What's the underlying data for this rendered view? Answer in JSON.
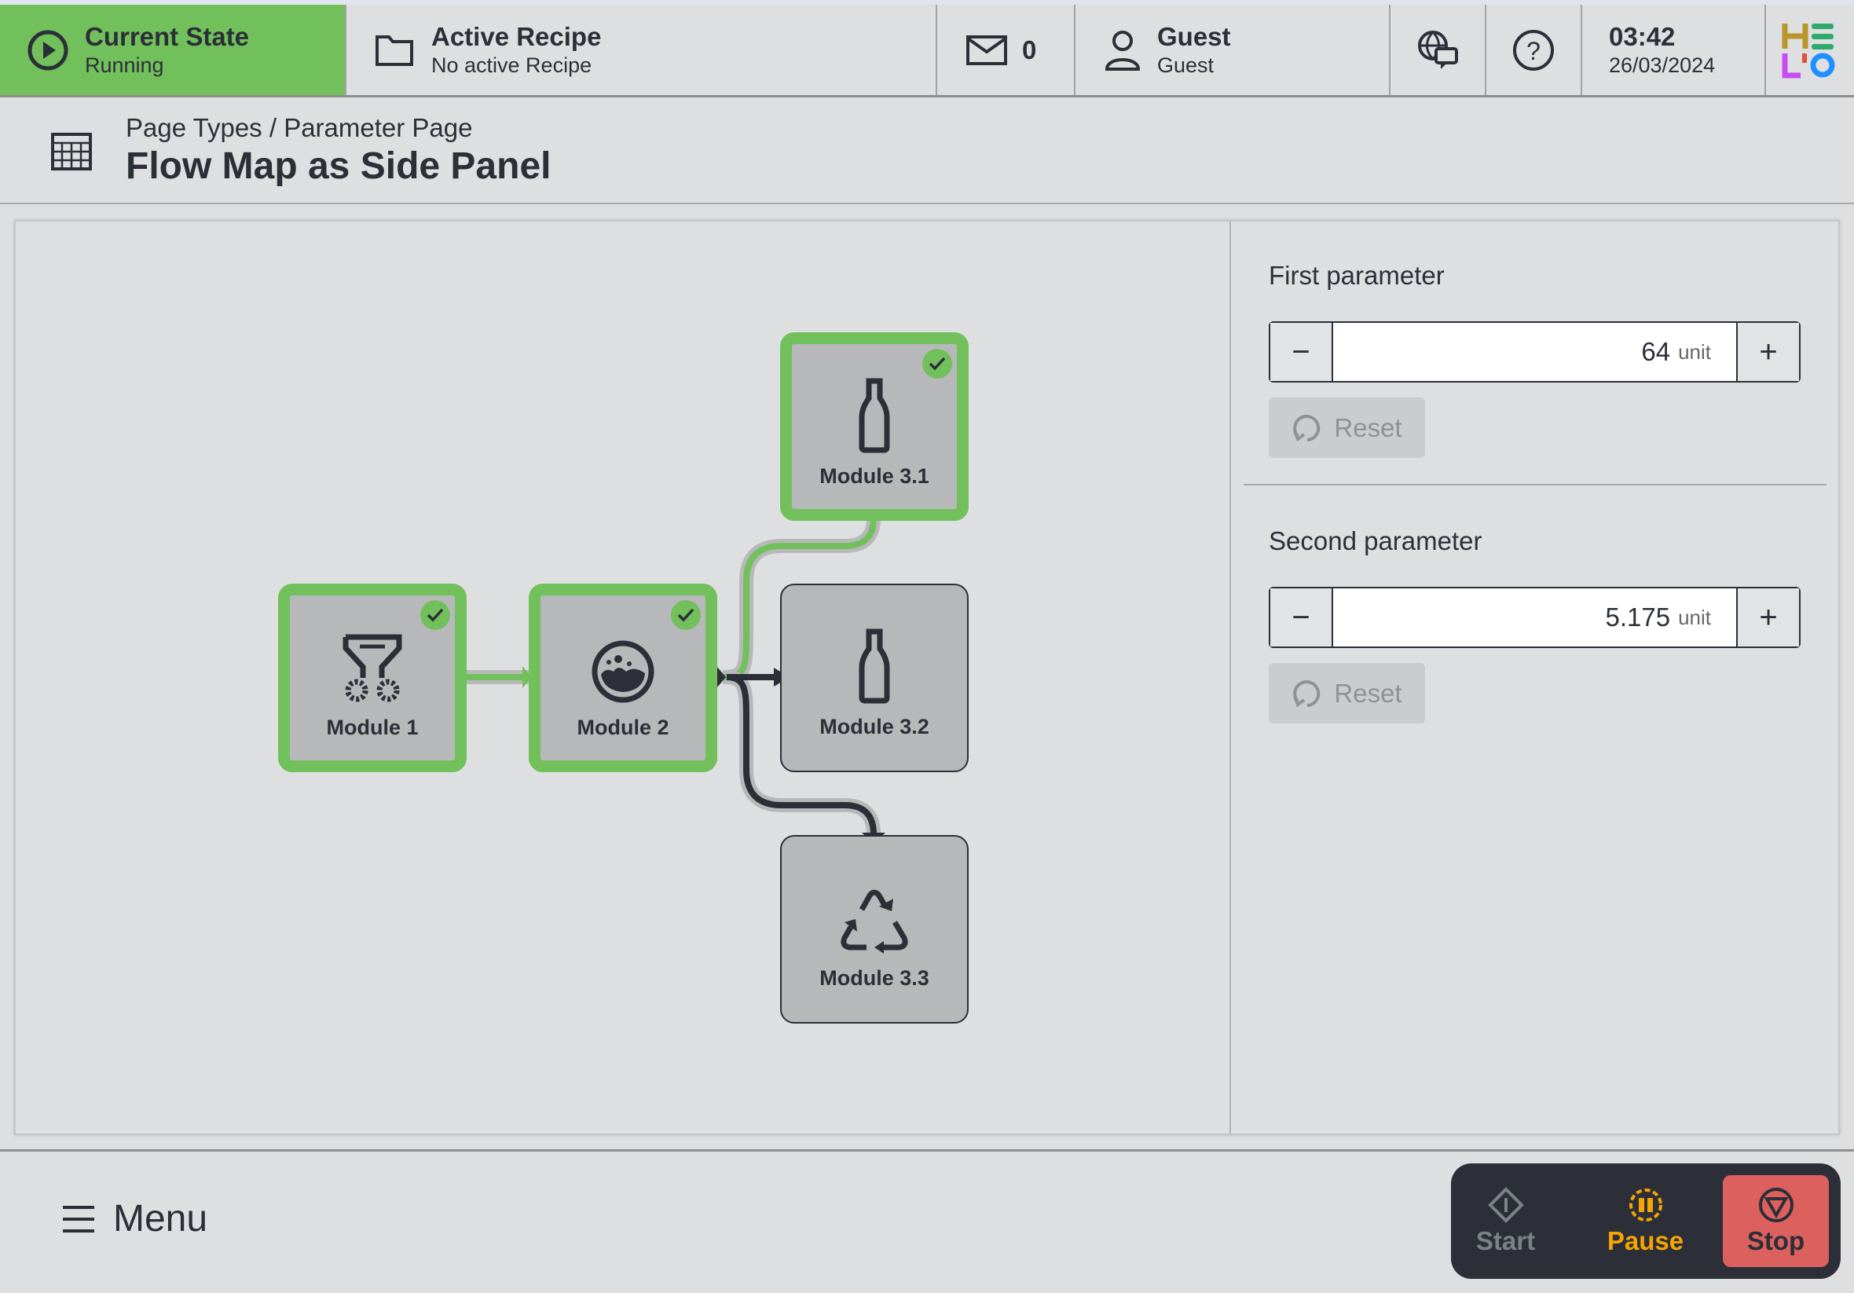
{
  "topbar": {
    "state": {
      "title": "Current State",
      "value": "Running",
      "color": "#72c05b",
      "icon": "play-circle-icon"
    },
    "recipe": {
      "title": "Active Recipe",
      "value": "No active Recipe",
      "icon": "folder-icon"
    },
    "messages": {
      "count": "0",
      "icon": "mail-icon"
    },
    "user": {
      "name": "Guest",
      "role": "Guest",
      "icon": "user-icon"
    },
    "language_icon": "globe-chat-icon",
    "help_icon": "help-icon",
    "time": "03:42",
    "date": "26/03/2024",
    "logo": "HELIO"
  },
  "header": {
    "breadcrumb": "Page Types / Parameter Page",
    "title": "Flow Map as Side Panel",
    "icon": "table-page-icon"
  },
  "flow": {
    "modules": [
      {
        "label": "Module 1",
        "done": true,
        "icon": "funnel-gears-icon"
      },
      {
        "label": "Module 2",
        "done": true,
        "icon": "mixer-icon"
      },
      {
        "label": "Module 3.1",
        "done": true,
        "icon": "bottle-icon"
      },
      {
        "label": "Module 3.2",
        "done": false,
        "icon": "bottle-icon"
      },
      {
        "label": "Module 3.3",
        "done": false,
        "icon": "recycle-icon"
      }
    ]
  },
  "params": [
    {
      "label": "First parameter",
      "value": "64",
      "unit": "unit",
      "reset": "Reset"
    },
    {
      "label": "Second parameter",
      "value": "5.175",
      "unit": "unit",
      "reset": "Reset"
    }
  ],
  "footer": {
    "menu": "Menu",
    "start": "Start",
    "pause": "Pause",
    "stop": "Stop",
    "pause_color": "#f5a400",
    "stop_color": "#db605e"
  }
}
